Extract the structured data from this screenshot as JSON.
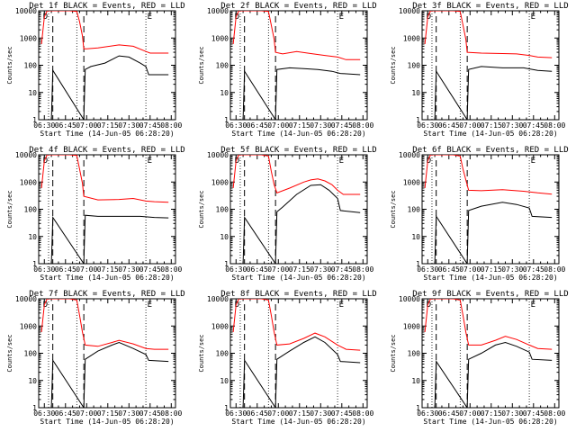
{
  "figure": {
    "title_template": "Det {id} BLACK = Events, RED = LLD",
    "xlabel": "Start Time (14-Jun-05 06:28:20)",
    "ylabel": "Counts/sec",
    "x_ticks": [
      "06:30",
      "06:45",
      "07:00",
      "07:15",
      "07:30",
      "07:45",
      "08:00"
    ],
    "y_ticks": [
      "1",
      "10",
      "100",
      "1000",
      "10000"
    ],
    "markers": [
      "D",
      "E"
    ],
    "colors": {
      "events": "#000000",
      "lld": "#ff0000"
    }
  },
  "chart_data": [
    {
      "type": "line",
      "detector": "1f",
      "title": "Det 1f BLACK = Events, RED = LLD",
      "xlabel": "Start Time (14-Jun-05 06:28:20)",
      "ylabel": "Counts/sec",
      "xlim": [
        -2,
        95
      ],
      "ylim": [
        1,
        10000
      ],
      "yscale": "log",
      "x_tick_minutes": [
        2,
        17,
        32,
        47,
        62,
        77,
        92
      ],
      "dotted_lines": [
        5,
        25,
        74
      ],
      "dashed_lines": [
        8,
        30
      ],
      "labels": [
        "D",
        "E"
      ],
      "series": [
        {
          "name": "LLD",
          "color": "red",
          "x": [
            0,
            2,
            4,
            6,
            8,
            12,
            20,
            25,
            27,
            29,
            30,
            32,
            40,
            55,
            65,
            74,
            77,
            90
          ],
          "y": [
            600,
            6000,
            10000,
            10000,
            10000,
            10000,
            10000,
            9500,
            4000,
            1200,
            400,
            400,
            430,
            560,
            500,
            320,
            280,
            280
          ]
        },
        {
          "name": "Events",
          "color": "black",
          "x": [
            6,
            7,
            8,
            30,
            31,
            35,
            45,
            55,
            62,
            70,
            74,
            76,
            90
          ],
          "y": [
            1,
            1,
            65,
            1,
            70,
            90,
            120,
            220,
            200,
            120,
            90,
            45,
            45
          ]
        }
      ]
    },
    {
      "type": "line",
      "detector": "2f",
      "title": "Det 2f BLACK = Events, RED = LLD",
      "xlabel": "Start Time (14-Jun-05 06:28:20)",
      "ylabel": "Counts/sec",
      "xlim": [
        -2,
        95
      ],
      "ylim": [
        1,
        10000
      ],
      "yscale": "log",
      "x_tick_minutes": [
        2,
        17,
        32,
        47,
        62,
        77,
        92
      ],
      "dotted_lines": [
        5,
        25,
        74
      ],
      "dashed_lines": [
        8,
        30
      ],
      "labels": [
        "D",
        "E"
      ],
      "series": [
        {
          "name": "LLD",
          "color": "red",
          "x": [
            0,
            2,
            4,
            8,
            20,
            25,
            27,
            29,
            30,
            35,
            45,
            55,
            65,
            74,
            80,
            90
          ],
          "y": [
            600,
            6000,
            10000,
            10000,
            10000,
            9500,
            3000,
            900,
            300,
            260,
            320,
            270,
            230,
            200,
            160,
            160
          ]
        },
        {
          "name": "Events",
          "color": "black",
          "x": [
            6,
            7,
            8,
            30,
            31,
            40,
            50,
            60,
            70,
            76,
            90
          ],
          "y": [
            1,
            1,
            60,
            1,
            70,
            80,
            75,
            70,
            60,
            50,
            45
          ]
        }
      ]
    },
    {
      "type": "line",
      "detector": "3f",
      "title": "Det 3f BLACK = Events, RED = LLD",
      "xlabel": "Start Time (14-Jun-05 06:28:20)",
      "ylabel": "Counts/sec",
      "xlim": [
        -2,
        95
      ],
      "ylim": [
        1,
        10000
      ],
      "yscale": "log",
      "x_tick_minutes": [
        2,
        17,
        32,
        47,
        62,
        77,
        92
      ],
      "dotted_lines": [
        5,
        25,
        74
      ],
      "dashed_lines": [
        8,
        30
      ],
      "labels": [
        "D",
        "E"
      ],
      "series": [
        {
          "name": "LLD",
          "color": "red",
          "x": [
            0,
            2,
            4,
            8,
            20,
            25,
            27,
            29,
            30,
            40,
            55,
            65,
            74,
            80,
            90
          ],
          "y": [
            600,
            6000,
            10000,
            10000,
            10000,
            9500,
            3000,
            900,
            300,
            280,
            270,
            260,
            230,
            200,
            190
          ]
        },
        {
          "name": "Events",
          "color": "black",
          "x": [
            6,
            7,
            8,
            30,
            31,
            40,
            55,
            70,
            80,
            90
          ],
          "y": [
            1,
            1,
            60,
            1,
            70,
            90,
            80,
            80,
            65,
            60
          ]
        }
      ]
    },
    {
      "type": "line",
      "detector": "4f",
      "title": "Det 4f BLACK = Events, RED = LLD",
      "xlabel": "Start Time (14-Jun-05 06:28:20)",
      "ylabel": "Counts/sec",
      "xlim": [
        -2,
        95
      ],
      "ylim": [
        1,
        10000
      ],
      "yscale": "log",
      "x_tick_minutes": [
        2,
        17,
        32,
        47,
        62,
        77,
        92
      ],
      "dotted_lines": [
        5,
        25,
        74
      ],
      "dashed_lines": [
        8,
        30
      ],
      "labels": [
        "D",
        "E"
      ],
      "series": [
        {
          "name": "LLD",
          "color": "red",
          "x": [
            0,
            2,
            4,
            8,
            20,
            25,
            27,
            29,
            30,
            40,
            55,
            65,
            74,
            80,
            90
          ],
          "y": [
            600,
            6000,
            10000,
            10000,
            10000,
            9500,
            3000,
            900,
            300,
            220,
            230,
            250,
            200,
            190,
            180
          ]
        },
        {
          "name": "Events",
          "color": "black",
          "x": [
            6,
            7,
            8,
            30,
            31,
            40,
            55,
            70,
            80,
            90
          ],
          "y": [
            1,
            1,
            50,
            1,
            60,
            55,
            55,
            55,
            50,
            48
          ]
        }
      ]
    },
    {
      "type": "line",
      "detector": "5f",
      "title": "Det 5f BLACK = Events, RED = LLD",
      "xlabel": "Start Time (14-Jun-05 06:28:20)",
      "ylabel": "Counts/sec",
      "xlim": [
        -2,
        95
      ],
      "ylim": [
        1,
        10000
      ],
      "yscale": "log",
      "x_tick_minutes": [
        2,
        17,
        32,
        47,
        62,
        77,
        92
      ],
      "dotted_lines": [
        5,
        25,
        74
      ],
      "dashed_lines": [
        8,
        30
      ],
      "labels": [
        "D",
        "E"
      ],
      "series": [
        {
          "name": "LLD",
          "color": "red",
          "x": [
            0,
            2,
            4,
            8,
            20,
            25,
            27,
            29,
            31,
            40,
            50,
            55,
            60,
            65,
            70,
            74,
            78,
            90
          ],
          "y": [
            600,
            6000,
            10000,
            10000,
            10000,
            9000,
            2500,
            800,
            400,
            600,
            1000,
            1200,
            1300,
            1100,
            800,
            500,
            350,
            350
          ]
        },
        {
          "name": "Events",
          "color": "black",
          "x": [
            6,
            7,
            8,
            30,
            31,
            35,
            45,
            55,
            62,
            68,
            74,
            76,
            90
          ],
          "y": [
            1,
            1,
            50,
            1,
            80,
            120,
            350,
            750,
            800,
            500,
            250,
            90,
            75
          ]
        }
      ]
    },
    {
      "type": "line",
      "detector": "6f",
      "title": "Det 6f BLACK = Events, RED = LLD",
      "xlabel": "Start Time (14-Jun-05 06:28:20)",
      "ylabel": "Counts/sec",
      "xlim": [
        -2,
        95
      ],
      "ylim": [
        1,
        10000
      ],
      "yscale": "log",
      "x_tick_minutes": [
        2,
        17,
        32,
        47,
        62,
        77,
        92
      ],
      "dotted_lines": [
        5,
        25,
        74
      ],
      "dashed_lines": [
        8,
        30
      ],
      "labels": [
        "D",
        "E"
      ],
      "series": [
        {
          "name": "LLD",
          "color": "red",
          "x": [
            0,
            2,
            4,
            8,
            20,
            25,
            27,
            29,
            31,
            40,
            55,
            70,
            80,
            90
          ],
          "y": [
            600,
            6000,
            10000,
            10000,
            10000,
            9000,
            3000,
            1200,
            500,
            480,
            520,
            460,
            400,
            360
          ]
        },
        {
          "name": "Events",
          "color": "black",
          "x": [
            6,
            7,
            8,
            30,
            31,
            40,
            55,
            65,
            74,
            76,
            90
          ],
          "y": [
            1,
            1,
            55,
            1,
            90,
            130,
            180,
            150,
            110,
            55,
            50
          ]
        }
      ]
    },
    {
      "type": "line",
      "detector": "7f",
      "title": "Det 7f BLACK = Events, RED = LLD",
      "xlabel": "Start Time (14-Jun-05 06:28:20)",
      "ylabel": "Counts/sec",
      "xlim": [
        -2,
        95
      ],
      "ylim": [
        1,
        10000
      ],
      "yscale": "log",
      "x_tick_minutes": [
        2,
        17,
        32,
        47,
        62,
        77,
        92
      ],
      "dotted_lines": [
        5,
        25,
        74
      ],
      "dashed_lines": [
        8,
        30
      ],
      "labels": [
        "D",
        "E"
      ],
      "series": [
        {
          "name": "LLD",
          "color": "red",
          "x": [
            0,
            2,
            4,
            8,
            20,
            25,
            27,
            29,
            31,
            40,
            50,
            55,
            65,
            74,
            80,
            90
          ],
          "y": [
            600,
            6000,
            10000,
            10000,
            10000,
            9000,
            2500,
            600,
            200,
            180,
            250,
            300,
            220,
            150,
            140,
            140
          ]
        },
        {
          "name": "Events",
          "color": "black",
          "x": [
            6,
            7,
            8,
            30,
            31,
            40,
            50,
            55,
            65,
            74,
            76,
            90
          ],
          "y": [
            1,
            1,
            55,
            1,
            60,
            120,
            200,
            250,
            150,
            90,
            55,
            50
          ]
        }
      ]
    },
    {
      "type": "line",
      "detector": "8f",
      "title": "Det 8f BLACK = Events, RED = LLD",
      "xlabel": "Start Time (14-Jun-05 06:28:20)",
      "ylabel": "Counts/sec",
      "xlim": [
        -2,
        95
      ],
      "ylim": [
        1,
        10000
      ],
      "yscale": "log",
      "x_tick_minutes": [
        2,
        17,
        32,
        47,
        62,
        77,
        92
      ],
      "dotted_lines": [
        5,
        25,
        74
      ],
      "dashed_lines": [
        8,
        30
      ],
      "labels": [
        "D",
        "E"
      ],
      "series": [
        {
          "name": "LLD",
          "color": "red",
          "x": [
            0,
            2,
            4,
            8,
            20,
            25,
            27,
            29,
            31,
            40,
            50,
            58,
            65,
            74,
            80,
            90
          ],
          "y": [
            600,
            6000,
            10000,
            10000,
            10000,
            9000,
            2500,
            600,
            200,
            220,
            350,
            550,
            400,
            200,
            140,
            130
          ]
        },
        {
          "name": "Events",
          "color": "black",
          "x": [
            6,
            7,
            8,
            30,
            31,
            40,
            50,
            58,
            65,
            74,
            76,
            90
          ],
          "y": [
            1,
            1,
            55,
            1,
            60,
            120,
            250,
            400,
            250,
            90,
            50,
            45
          ]
        }
      ]
    },
    {
      "type": "line",
      "detector": "9f",
      "title": "Det 9f BLACK = Events, RED = LLD",
      "xlabel": "Start Time (14-Jun-05 06:28:20)",
      "ylabel": "Counts/sec",
      "xlim": [
        -2,
        95
      ],
      "ylim": [
        1,
        10000
      ],
      "yscale": "log",
      "x_tick_minutes": [
        2,
        17,
        32,
        47,
        62,
        77,
        92
      ],
      "dotted_lines": [
        5,
        25,
        74
      ],
      "dashed_lines": [
        8,
        30
      ],
      "labels": [
        "D",
        "E"
      ],
      "series": [
        {
          "name": "LLD",
          "color": "red",
          "x": [
            0,
            2,
            4,
            8,
            20,
            25,
            27,
            29,
            31,
            40,
            50,
            57,
            65,
            74,
            80,
            90
          ],
          "y": [
            600,
            6000,
            10000,
            10000,
            10000,
            9000,
            2500,
            600,
            200,
            200,
            300,
            420,
            320,
            200,
            150,
            140
          ]
        },
        {
          "name": "Events",
          "color": "black",
          "x": [
            6,
            7,
            8,
            30,
            31,
            40,
            50,
            57,
            65,
            74,
            76,
            90
          ],
          "y": [
            1,
            1,
            50,
            1,
            60,
            100,
            200,
            250,
            180,
            110,
            60,
            55
          ]
        }
      ]
    }
  ]
}
